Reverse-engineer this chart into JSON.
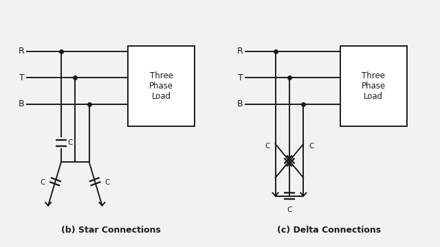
{
  "bg_color": "#f2f2f2",
  "line_color": "#1a1a1a",
  "lw": 1.4,
  "dot_size": 4,
  "star_title": "(b) Star Connections",
  "delta_title": "(c) Delta Connections",
  "box_text": "Three\nPhase\nLoad"
}
